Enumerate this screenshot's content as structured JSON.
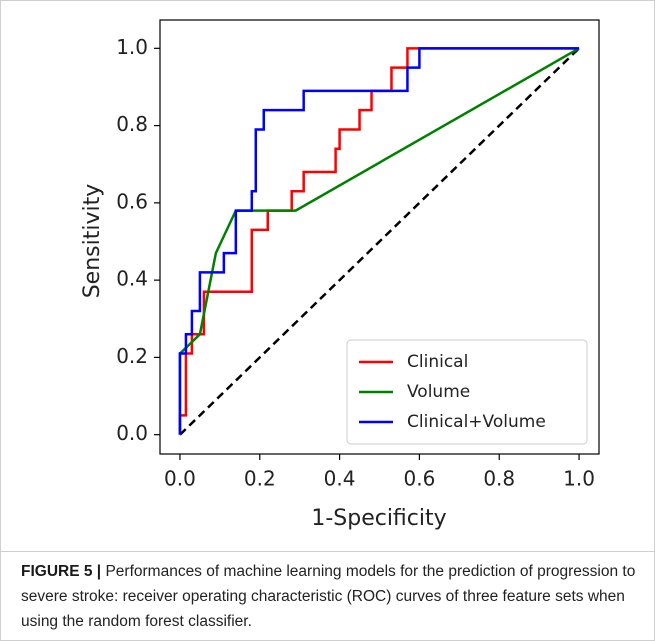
{
  "chart_data": {
    "type": "line",
    "xlabel": "1-Specificity",
    "ylabel": "Sensitivity",
    "xlim": [
      -0.05,
      1.05
    ],
    "ylim": [
      -0.05,
      1.05
    ],
    "xticks": [
      {
        "value": 0,
        "label": "0.0"
      },
      0.2,
      0.4,
      0.6,
      0.8,
      {
        "value": 1,
        "label": "1.0"
      }
    ],
    "yticks": [
      {
        "value": 0,
        "label": "0.0"
      },
      0.2,
      0.4,
      0.6,
      0.8,
      {
        "value": 1,
        "label": "1.0"
      }
    ],
    "legend": "lower right",
    "series": [
      {
        "name": "Clinical",
        "color": "#ff0000",
        "x": [
          0,
          0,
          0.015,
          0.015,
          0.03,
          0.03,
          0.06,
          0.06,
          0.18,
          0.18,
          0.22,
          0.22,
          0.28,
          0.28,
          0.31,
          0.31,
          0.39,
          0.39,
          0.4,
          0.4,
          0.45,
          0.45,
          0.48,
          0.48,
          0.53,
          0.53,
          0.57,
          0.57,
          1
        ],
        "values": [
          0,
          0.05,
          0.05,
          0.21,
          0.21,
          0.26,
          0.26,
          0.37,
          0.37,
          0.53,
          0.53,
          0.58,
          0.58,
          0.63,
          0.63,
          0.68,
          0.68,
          0.74,
          0.74,
          0.79,
          0.79,
          0.84,
          0.84,
          0.89,
          0.89,
          0.95,
          0.95,
          1,
          1
        ]
      },
      {
        "name": "Volume",
        "color": "#008000",
        "x": [
          0,
          0,
          0.05,
          0.09,
          0.14,
          0.29,
          1
        ],
        "values": [
          0,
          0.21,
          0.26,
          0.47,
          0.58,
          0.58,
          1
        ]
      },
      {
        "name": "Clinical+Volume",
        "color": "#0000ff",
        "x": [
          0,
          0,
          0.015,
          0.015,
          0.03,
          0.03,
          0.05,
          0.05,
          0.11,
          0.11,
          0.14,
          0.14,
          0.18,
          0.18,
          0.19,
          0.19,
          0.21,
          0.21,
          0.31,
          0.31,
          0.57,
          0.57,
          0.6,
          0.6,
          1
        ],
        "values": [
          0,
          0.21,
          0.21,
          0.26,
          0.26,
          0.32,
          0.32,
          0.42,
          0.42,
          0.47,
          0.47,
          0.58,
          0.58,
          0.63,
          0.63,
          0.79,
          0.79,
          0.84,
          0.84,
          0.89,
          0.89,
          0.95,
          0.95,
          1,
          1
        ]
      }
    ]
  },
  "caption": {
    "label": "FIGURE 5 |",
    "text": "Performances of machine learning models for the prediction of progression to severe stroke: receiver operating characteristic (ROC) curves of three feature sets when using the random forest classifier."
  }
}
